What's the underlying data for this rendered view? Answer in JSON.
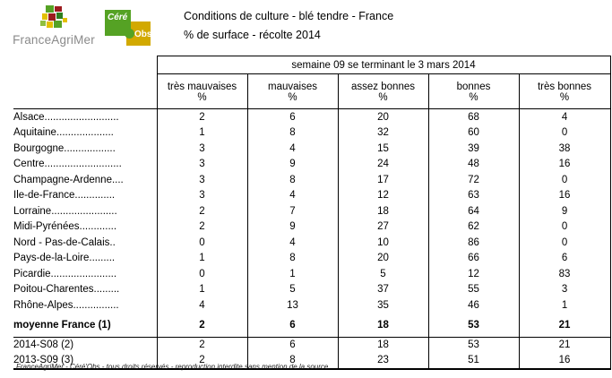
{
  "header": {
    "franceagrimer_text": "FranceAgriMer",
    "cereobs_cere": "Céré",
    "cereobs_obs": "Obs",
    "title_line1": "Conditions de culture - blé tendre - France",
    "title_line2": "% de surface - récolte 2014"
  },
  "table": {
    "week_header": "semaine 09 se terminant le 3 mars 2014",
    "columns": [
      {
        "label": "très mauvaises",
        "unit": "%"
      },
      {
        "label": "mauvaises",
        "unit": "%"
      },
      {
        "label": "assez bonnes",
        "unit": "%"
      },
      {
        "label": "bonnes",
        "unit": "%"
      },
      {
        "label": "très bonnes",
        "unit": "%"
      }
    ],
    "rows": [
      {
        "label": "Alsace..........................",
        "values": [
          2,
          6,
          20,
          68,
          4
        ]
      },
      {
        "label": "Aquitaine....................",
        "values": [
          1,
          8,
          32,
          60,
          0
        ]
      },
      {
        "label": "Bourgogne..................",
        "values": [
          3,
          4,
          15,
          39,
          38
        ]
      },
      {
        "label": "Centre...........................",
        "values": [
          3,
          9,
          24,
          48,
          16
        ]
      },
      {
        "label": "Champagne-Ardenne....",
        "values": [
          3,
          8,
          17,
          72,
          0
        ]
      },
      {
        "label": "Ile-de-France..............",
        "values": [
          3,
          4,
          12,
          63,
          16
        ]
      },
      {
        "label": "Lorraine.......................",
        "values": [
          2,
          7,
          18,
          64,
          9
        ]
      },
      {
        "label": "Midi-Pyrénées.............",
        "values": [
          2,
          9,
          27,
          62,
          0
        ]
      },
      {
        "label": "Nord - Pas-de-Calais..",
        "values": [
          0,
          4,
          10,
          86,
          0
        ]
      },
      {
        "label": "Pays-de-la-Loire.........",
        "values": [
          1,
          8,
          20,
          66,
          6
        ]
      },
      {
        "label": "Picardie.......................",
        "values": [
          0,
          1,
          5,
          12,
          83
        ]
      },
      {
        "label": "Poitou-Charentes.........",
        "values": [
          1,
          5,
          37,
          55,
          3
        ]
      },
      {
        "label": "Rhône-Alpes................",
        "values": [
          4,
          13,
          35,
          46,
          1
        ]
      }
    ],
    "summary_row": {
      "label": "moyenne France (1)",
      "values": [
        2,
        6,
        18,
        53,
        21
      ]
    },
    "comparison_rows": [
      {
        "label": "2014-S08 (2)",
        "values": [
          2,
          6,
          18,
          53,
          21
        ]
      },
      {
        "label": "2013-S09 (3)",
        "values": [
          2,
          8,
          23,
          51,
          16
        ]
      }
    ]
  },
  "footer": {
    "note": "FranceAgriMer - Céré'Obs - tous droits réservés - reproduction interdite sans mention de la source"
  },
  "colors": {
    "logo_green": "#55a224",
    "logo_yellow": "#d2a900",
    "logo_dark_red": "#9c1b1e",
    "logo_text_gray": "#8a8a8a",
    "table_border": "#000000"
  }
}
